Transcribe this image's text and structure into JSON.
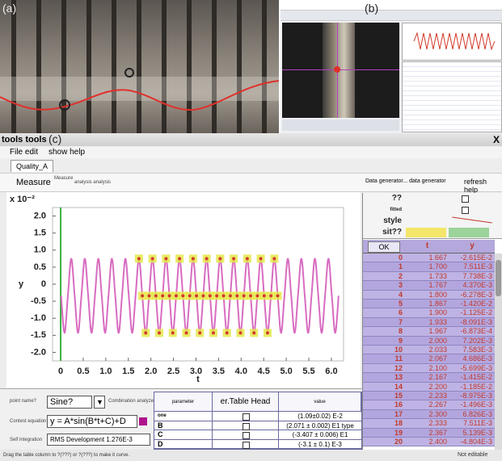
{
  "panels": {
    "a_label": "(a)",
    "b_label": "(b)",
    "c_label": "(c)"
  },
  "window": {
    "title": "tools tools",
    "close": "X",
    "menu": [
      "File edit",
      "show help"
    ],
    "tab": "Quality_A"
  },
  "toolbar": {
    "measure": "Measure",
    "measure_small": "Measure",
    "analysis": "analysis analysis",
    "data_generator": "Data generator... data generator",
    "refresh": "refresh help"
  },
  "chart_data": {
    "type": "line",
    "y_unit": "x 10⁻²",
    "xlabel": "t",
    "ylabel": "y",
    "xlim": [
      -0.18,
      6.27
    ],
    "ylim": [
      -2.25,
      2.25
    ],
    "xticks": [
      0,
      0.5,
      {
        "value": 1,
        "label": "1.0"
      },
      1.5,
      {
        "value": 2,
        "label": "2.0"
      },
      2.5,
      {
        "value": 3,
        "label": "3.0"
      },
      3.5,
      {
        "value": 4,
        "label": "4.0"
      },
      4.5,
      {
        "value": 5,
        "label": "5.0"
      },
      5.5,
      {
        "value": 6,
        "label": "6.0"
      }
    ],
    "yticks": [
      {
        "value": 2,
        "label": "2.0"
      },
      1.5,
      {
        "value": 1,
        "label": "1.0"
      },
      0.5,
      0,
      -0.5,
      {
        "value": -1,
        "label": "-1.0"
      },
      -1.5,
      {
        "value": -2,
        "label": "-2.0"
      }
    ],
    "grid": false,
    "cursor_x": 0,
    "cursor_color": "#3cb043",
    "series": [
      {
        "color": "#d86cc0",
        "x": [
          0.01,
          0.085,
          0.16,
          0.235,
          0.31,
          0.385,
          0.46,
          0.535,
          0.61,
          0.685,
          0.76,
          0.835,
          0.91,
          0.985,
          1.06,
          1.135,
          1.21,
          1.285,
          1.36,
          1.435,
          1.51,
          1.585,
          1.66,
          1.735,
          1.81,
          1.885,
          1.96,
          2.035,
          2.11,
          2.185,
          2.26,
          2.335,
          2.41,
          2.485,
          2.56,
          2.635,
          2.71,
          2.785,
          2.86,
          2.935,
          3.01,
          3.085,
          3.16,
          3.235,
          3.31,
          3.385,
          3.46,
          3.535,
          3.61,
          3.685,
          3.76,
          3.835,
          3.91,
          3.985,
          4.06,
          4.135,
          4.21,
          4.285,
          4.36,
          4.435,
          4.51,
          4.585,
          4.66,
          4.735,
          4.81,
          4.885,
          4.96,
          5.035,
          5.11,
          5.185,
          5.26,
          5.335,
          5.41,
          5.485,
          5.56,
          5.635,
          5.71,
          5.785,
          5.86,
          5.935,
          6.01,
          6.085,
          6.16
        ],
        "values": [
          -0.34,
          -1.43,
          -0.34,
          0.75,
          -0.34,
          -1.43,
          -0.34,
          0.75,
          -0.34,
          -1.43,
          -0.34,
          0.75,
          -0.34,
          -1.43,
          -0.34,
          0.75,
          -0.34,
          -1.43,
          -0.34,
          0.75,
          -0.34,
          -1.43,
          -0.34,
          0.75,
          -0.34,
          -1.43,
          -0.34,
          0.75,
          -0.34,
          -1.43,
          -0.34,
          0.75,
          -0.34,
          -1.43,
          -0.34,
          0.75,
          -0.34,
          -1.43,
          -0.34,
          0.75,
          -0.34,
          -1.43,
          -0.34,
          0.75,
          -0.34,
          -1.43,
          -0.34,
          0.75,
          -0.34,
          -1.43,
          -0.34,
          0.75,
          -0.34,
          -1.43,
          -0.34,
          0.75,
          -0.34,
          -1.43,
          -0.34,
          0.75,
          -0.34,
          -1.43,
          -0.34,
          0.75,
          -0.34,
          -1.43,
          -0.34,
          0.75,
          -0.34,
          -1.43,
          -0.34,
          0.75,
          -0.34,
          -1.43,
          -0.34,
          0.75,
          -0.34,
          -1.43,
          -0.34,
          0.75,
          -0.34,
          -1.43,
          -0.34
        ]
      },
      {
        "color": "#e6e84a",
        "edge": "#d23b2b",
        "marker": "square",
        "x": [
          1.735,
          1.81,
          1.885,
          1.96,
          2.035,
          2.11,
          2.185,
          2.26,
          2.335,
          2.41,
          2.485,
          2.56,
          2.635,
          2.71,
          2.785,
          2.86,
          2.935,
          3.01,
          3.085,
          3.16,
          3.235,
          3.31,
          3.385,
          3.46,
          3.535,
          3.61,
          3.685,
          3.76,
          3.835,
          3.91,
          3.985,
          4.06,
          4.135,
          4.21,
          4.285,
          4.36,
          4.435,
          4.51,
          4.585,
          4.66,
          4.735,
          4.81
        ],
        "values": [
          0.75,
          -0.34,
          -1.43,
          -0.34,
          0.75,
          -0.34,
          -1.43,
          -0.34,
          0.75,
          -0.34,
          -1.43,
          -0.34,
          0.75,
          -0.34,
          -1.43,
          -0.34,
          0.75,
          -0.34,
          -1.43,
          -0.34,
          0.75,
          -0.34,
          -1.43,
          -0.34,
          0.75,
          -0.34,
          -1.43,
          -0.34,
          0.75,
          -0.34,
          -1.43,
          -0.34,
          0.75,
          -0.34,
          -1.43,
          -0.34,
          0.75,
          -0.34,
          -1.43,
          -0.34,
          0.75,
          -0.34
        ]
      }
    ]
  },
  "data_table": {
    "options": [
      "??",
      "fitted",
      "style",
      "sit??"
    ],
    "ok": "OK",
    "columns": [
      "t",
      "y"
    ],
    "rows": [
      [
        "0",
        "1.667",
        "-2.615E-2"
      ],
      [
        "1",
        "1.700",
        "7.511E-3"
      ],
      [
        "2",
        "1.733",
        "7.738E-3"
      ],
      [
        "3",
        "1.767",
        "4.370E-3"
      ],
      [
        "4",
        "1.800",
        "-6.278E-3"
      ],
      [
        "5",
        "1.867",
        "-1.420E-2"
      ],
      [
        "6",
        "1.900",
        "-1.125E-2"
      ],
      [
        "7",
        "1.933",
        "-8.091E-3"
      ],
      [
        "8",
        "1.967",
        "-6.873E-4"
      ],
      [
        "9",
        "2.000",
        "7.202E-3"
      ],
      [
        "10",
        "2.033",
        "7.583E-3"
      ],
      [
        "11",
        "2.067",
        "4.686E-3"
      ],
      [
        "12",
        "2.100",
        "-5.699E-3"
      ],
      [
        "13",
        "2.167",
        "-1.415E-2"
      ],
      [
        "14",
        "2.200",
        "-1.185E-2"
      ],
      [
        "15",
        "2.233",
        "-8.975E-3"
      ],
      [
        "16",
        "2.267",
        "-1.496E-3"
      ],
      [
        "17",
        "2.300",
        "6.826E-3"
      ],
      [
        "18",
        "2.333",
        "7.511E-3"
      ],
      [
        "19",
        "2.367",
        "5.139E-3"
      ],
      [
        "20",
        "2.400",
        "-4.804E-3"
      ]
    ]
  },
  "fit": {
    "name_label": "point name?",
    "name": "Sine?",
    "dropdown": "▼",
    "combo_label": "Combination analyze",
    "equation_label": "Contest equation",
    "equation": "y = A*sin(B*t+C)+D",
    "rms_label": "Self integration",
    "rms": "RMS Development 1.276E-3"
  },
  "params": {
    "headers": [
      "parameter",
      "er.Table Head",
      "value"
    ],
    "rows": [
      [
        "one",
        "(1.09±0.02) E-2"
      ],
      [
        "B",
        "(2.071 ± 0.002) E1 type"
      ],
      [
        "C",
        "(-3.407 ± 0.006) E1"
      ],
      [
        "D",
        "(-3.1 ± 0.1) E-3"
      ]
    ]
  },
  "status": {
    "hint": "Drag the table column to ?(???) or ?(???) to make it curve.",
    "state": "Not editable"
  }
}
